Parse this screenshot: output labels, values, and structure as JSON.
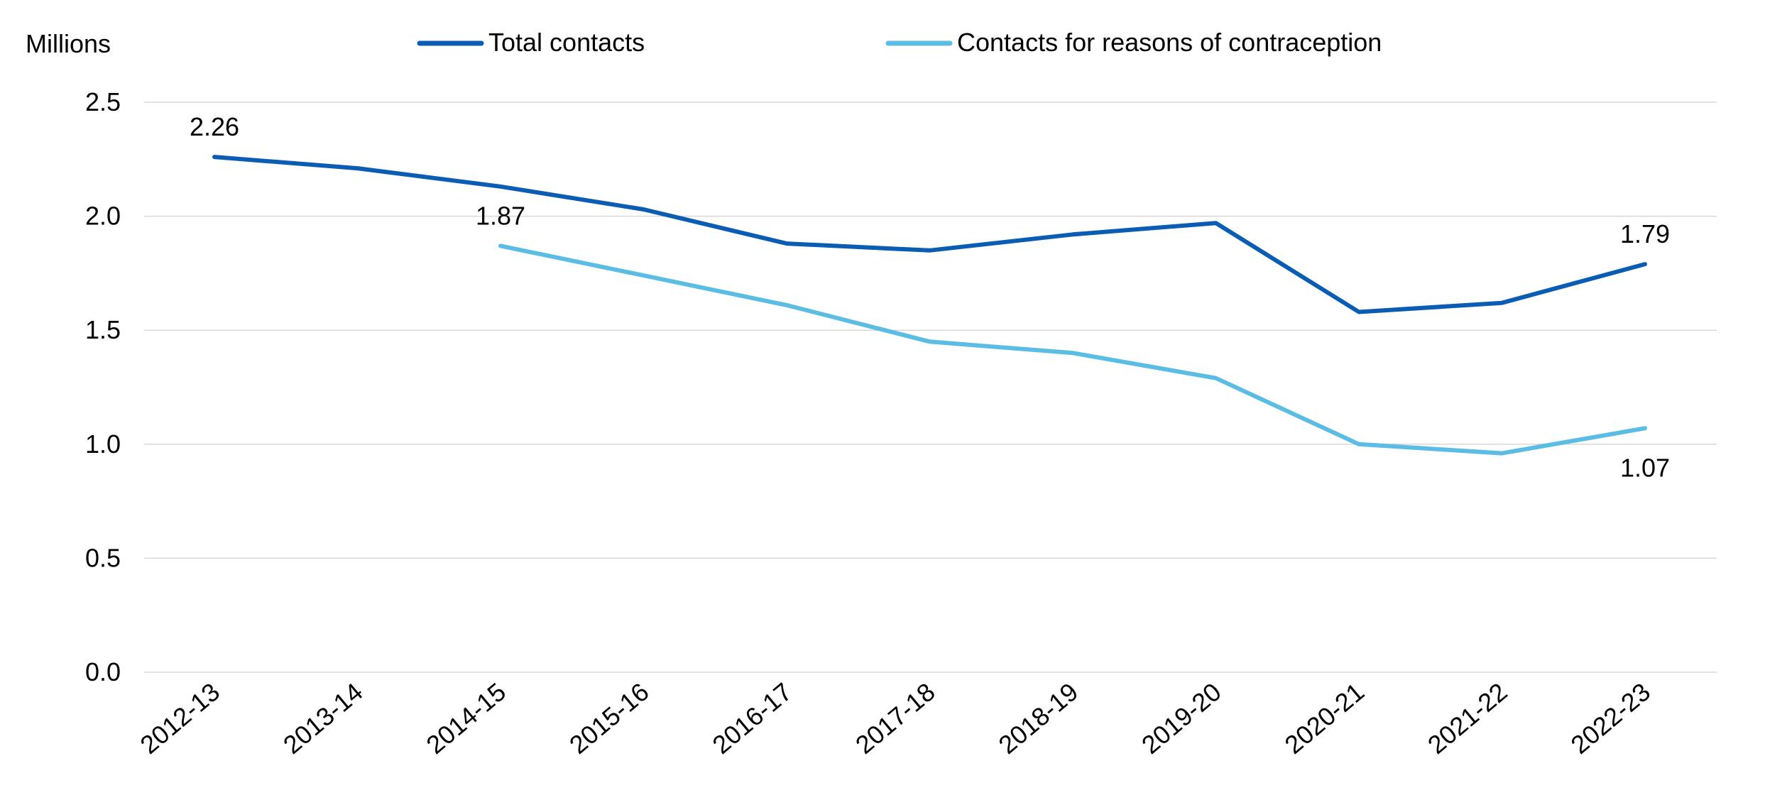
{
  "chart_data": {
    "type": "line",
    "ylabel": "Millions",
    "ylim": [
      0,
      2.5
    ],
    "yticks": [
      "0.0",
      "0.5",
      "1.0",
      "1.5",
      "2.0",
      "2.5"
    ],
    "categories": [
      "2012-13",
      "2013-14",
      "2014-15",
      "2015-16",
      "2016-17",
      "2017-18",
      "2018-19",
      "2019-20",
      "2020-21",
      "2021-22",
      "2022-23"
    ],
    "grid": true,
    "legend_position": "top",
    "series": [
      {
        "name": "Total contacts",
        "color": "#0b5db3",
        "values": [
          2.26,
          2.21,
          2.13,
          2.03,
          1.88,
          1.85,
          1.92,
          1.97,
          1.58,
          1.62,
          1.79
        ]
      },
      {
        "name": "Contacts for reasons of contraception",
        "color": "#5bbce4",
        "values": [
          null,
          null,
          1.87,
          1.74,
          1.61,
          1.45,
          1.4,
          1.29,
          1.0,
          0.96,
          1.07
        ]
      }
    ],
    "data_labels": [
      {
        "series": 0,
        "index": 0,
        "text": "2.26",
        "position": "above"
      },
      {
        "series": 0,
        "index": 10,
        "text": "1.79",
        "position": "above"
      },
      {
        "series": 1,
        "index": 2,
        "text": "1.87",
        "position": "above"
      },
      {
        "series": 1,
        "index": 10,
        "text": "1.07",
        "position": "below"
      }
    ]
  }
}
